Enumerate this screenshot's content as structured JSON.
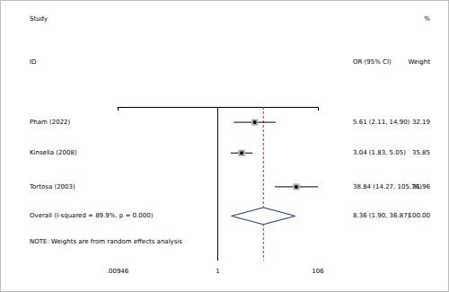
{
  "chart_data": {
    "type": "forest",
    "headers": {
      "study": "Study",
      "id": "ID",
      "estimate": "OR (95% CI)",
      "weight_top": "%",
      "weight": "Weight"
    },
    "studies": [
      {
        "name": "Pham (2022)",
        "or": 5.61,
        "ci_low": 2.11,
        "ci_high": 14.9,
        "or_label": "5.61 (2.11, 14.90)",
        "weight": 32.19,
        "weight_label": "32.19"
      },
      {
        "name": "Kinsella (2008)",
        "or": 3.04,
        "ci_low": 1.83,
        "ci_high": 5.05,
        "or_label": "3.04 (1.83, 5.05)",
        "weight": 35.85,
        "weight_label": "35.85"
      },
      {
        "name": "Tortosa (2003)",
        "or": 38.84,
        "ci_low": 14.27,
        "ci_high": 105.76,
        "or_label": "38.84 (14.27, 105.76)",
        "weight": 31.96,
        "weight_label": "31.96"
      }
    ],
    "overall": {
      "name": "Overall (I-squared = 89.9%, p = 0.000)",
      "or": 8.36,
      "ci_low": 1.9,
      "ci_high": 36.87,
      "or_label": "8.36 (1.90, 36.87)",
      "weight": 100,
      "weight_label": "100.00"
    },
    "note": "NOTE: Weights are from random effects analysis",
    "null_line": 1,
    "log": "x",
    "xlim": [
      0.00946,
      106
    ],
    "xticks": [
      {
        "value": 0.00946,
        "label": ".00946"
      },
      1,
      106
    ]
  }
}
